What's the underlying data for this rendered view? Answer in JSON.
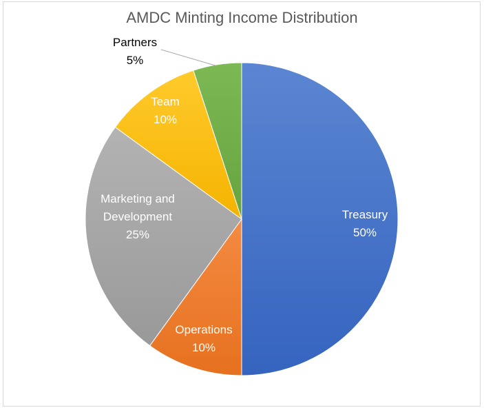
{
  "chart_data": {
    "type": "pie",
    "title": "AMDC Minting Income Distribution",
    "slices": [
      {
        "label": "Treasury",
        "percent_label": "50%",
        "value": 50,
        "color": "#4472c4",
        "label_color": "#ffffff"
      },
      {
        "label": "Operations",
        "percent_label": "10%",
        "value": 10,
        "color": "#ed7d31",
        "label_color": "#ffffff"
      },
      {
        "label": "Marketing and Development",
        "label_lines": [
          "Marketing and",
          "Development"
        ],
        "percent_label": "25%",
        "value": 25,
        "color": "#a5a5a5",
        "label_color": "#ffffff"
      },
      {
        "label": "Team",
        "percent_label": "10%",
        "value": 10,
        "color": "#ffc000",
        "label_color": "#ffffff"
      },
      {
        "label": "Partners",
        "percent_label": "5%",
        "value": 5,
        "color": "#70ad47",
        "label_color": "#000000"
      }
    ],
    "legend": "none",
    "start_angle": "12 o'clock, clockwise"
  }
}
